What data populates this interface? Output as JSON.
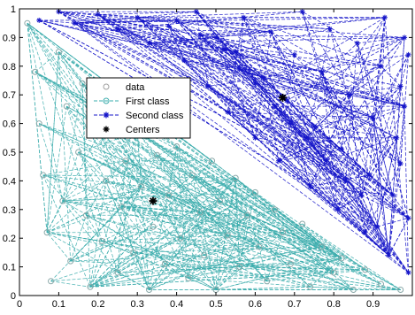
{
  "chart_data": {
    "type": "scatter",
    "title": "",
    "xlabel": "",
    "ylabel": "",
    "xlim": [
      0,
      1
    ],
    "ylim": [
      0,
      1
    ],
    "grid": false,
    "legend_position": "upper-left inside",
    "x_ticks": [
      "0",
      "0.1",
      "0.2",
      "0.3",
      "0.4",
      "0.5",
      "0.6",
      "0.7",
      "0.8",
      "0.9"
    ],
    "x_tick_values": [
      0,
      0.1,
      0.2,
      0.3,
      0.4,
      0.5,
      0.6,
      0.7,
      0.8,
      0.9
    ],
    "y_ticks": [
      "0",
      "0.1",
      "0.2",
      "0.3",
      "0.4",
      "0.5",
      "0.6",
      "0.7",
      "0.8",
      "0.9",
      "1"
    ],
    "y_tick_values": [
      0,
      0.1,
      0.2,
      0.3,
      0.4,
      0.5,
      0.6,
      0.7,
      0.8,
      0.9,
      1
    ],
    "legend": [
      {
        "label": "data",
        "marker": "circle",
        "color": "#a0a0a0",
        "line": "none"
      },
      {
        "label": "First class",
        "marker": "circle",
        "color": "#3aacac",
        "line": "dashed"
      },
      {
        "label": "Second class",
        "marker": "asterisk",
        "color": "#1414c8",
        "line": "dashed"
      },
      {
        "label": "Centers",
        "marker": "asterisk",
        "color": "#000000",
        "line": "none"
      }
    ],
    "series": [
      {
        "name": "First class",
        "color": "#3aacac",
        "marker": "circle",
        "points": [
          [
            0.02,
            0.95
          ],
          [
            0.04,
            0.78
          ],
          [
            0.05,
            0.6
          ],
          [
            0.06,
            0.42
          ],
          [
            0.07,
            0.22
          ],
          [
            0.08,
            0.05
          ],
          [
            0.1,
            0.85
          ],
          [
            0.11,
            0.33
          ],
          [
            0.12,
            0.66
          ],
          [
            0.13,
            0.12
          ],
          [
            0.15,
            0.5
          ],
          [
            0.16,
            0.74
          ],
          [
            0.17,
            0.28
          ],
          [
            0.18,
            0.03
          ],
          [
            0.2,
            0.56
          ],
          [
            0.21,
            0.19
          ],
          [
            0.22,
            0.4
          ],
          [
            0.24,
            0.62
          ],
          [
            0.25,
            0.08
          ],
          [
            0.26,
            0.31
          ],
          [
            0.27,
            0.47
          ],
          [
            0.29,
            0.15
          ],
          [
            0.3,
            0.57
          ],
          [
            0.31,
            0.38
          ],
          [
            0.33,
            0.02
          ],
          [
            0.34,
            0.24
          ],
          [
            0.35,
            0.49
          ],
          [
            0.37,
            0.11
          ],
          [
            0.38,
            0.35
          ],
          [
            0.4,
            0.52
          ],
          [
            0.41,
            0.2
          ],
          [
            0.43,
            0.06
          ],
          [
            0.44,
            0.42
          ],
          [
            0.46,
            0.29
          ],
          [
            0.47,
            0.14
          ],
          [
            0.49,
            0.47
          ],
          [
            0.5,
            0.02
          ],
          [
            0.51,
            0.33
          ],
          [
            0.53,
            0.21
          ],
          [
            0.55,
            0.41
          ],
          [
            0.56,
            0.1
          ],
          [
            0.58,
            0.28
          ],
          [
            0.6,
            0.36
          ],
          [
            0.61,
            0.17
          ],
          [
            0.63,
            0.05
          ],
          [
            0.65,
            0.3
          ],
          [
            0.67,
            0.22
          ],
          [
            0.69,
            0.11
          ],
          [
            0.72,
            0.25
          ],
          [
            0.74,
            0.03
          ],
          [
            0.77,
            0.17
          ],
          [
            0.8,
            0.08
          ],
          [
            0.82,
            0.13
          ],
          [
            0.85,
            0.02
          ],
          [
            0.88,
            0.09
          ],
          [
            0.92,
            0.04
          ],
          [
            0.97,
            0.02
          ]
        ]
      },
      {
        "name": "Second class",
        "color": "#1414c8",
        "marker": "asterisk",
        "points": [
          [
            0.05,
            0.96
          ],
          [
            0.1,
            0.99
          ],
          [
            0.14,
            0.95
          ],
          [
            0.2,
            0.98
          ],
          [
            0.25,
            0.93
          ],
          [
            0.3,
            0.97
          ],
          [
            0.33,
            0.88
          ],
          [
            0.38,
            0.94
          ],
          [
            0.42,
            0.82
          ],
          [
            0.45,
            0.99
          ],
          [
            0.48,
            0.73
          ],
          [
            0.5,
            0.9
          ],
          [
            0.53,
            0.64
          ],
          [
            0.55,
            0.85
          ],
          [
            0.57,
            0.97
          ],
          [
            0.6,
            0.55
          ],
          [
            0.62,
            0.76
          ],
          [
            0.64,
            0.92
          ],
          [
            0.66,
            0.47
          ],
          [
            0.68,
            0.68
          ],
          [
            0.7,
            0.84
          ],
          [
            0.72,
            0.99
          ],
          [
            0.74,
            0.38
          ],
          [
            0.75,
            0.59
          ],
          [
            0.77,
            0.78
          ],
          [
            0.79,
            0.93
          ],
          [
            0.81,
            0.3
          ],
          [
            0.82,
            0.51
          ],
          [
            0.84,
            0.7
          ],
          [
            0.86,
            0.88
          ],
          [
            0.88,
            0.22
          ],
          [
            0.89,
            0.42
          ],
          [
            0.9,
            0.62
          ],
          [
            0.92,
            0.8
          ],
          [
            0.93,
            0.97
          ],
          [
            0.94,
            0.14
          ],
          [
            0.95,
            0.35
          ],
          [
            0.96,
            0.55
          ],
          [
            0.97,
            0.73
          ],
          [
            0.98,
            0.9
          ],
          [
            0.99,
            0.08
          ],
          [
            0.99,
            0.27
          ],
          [
            0.97,
            0.46
          ],
          [
            0.98,
            0.66
          ],
          [
            0.99,
            0.84
          ],
          [
            0.91,
            0.24
          ],
          [
            0.87,
            0.35
          ],
          [
            0.83,
            0.4
          ],
          [
            0.78,
            0.47
          ],
          [
            0.73,
            0.55
          ],
          [
            0.69,
            0.6
          ],
          [
            0.65,
            0.66
          ],
          [
            0.6,
            0.74
          ],
          [
            0.56,
            0.79
          ],
          [
            0.52,
            0.86
          ],
          [
            0.46,
            0.91
          ],
          [
            0.4,
            0.96
          ]
        ]
      }
    ],
    "centers": [
      [
        0.34,
        0.33
      ],
      [
        0.67,
        0.69
      ]
    ]
  }
}
